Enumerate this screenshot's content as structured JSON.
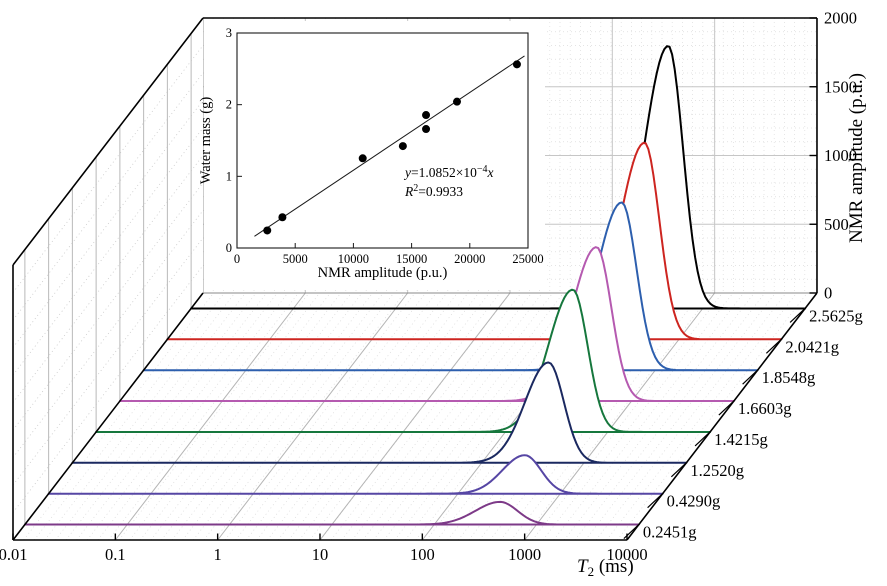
{
  "figure": {
    "background": "#ffffff"
  },
  "chart_data": [
    {
      "type": "line",
      "variant": "3d-waterfall",
      "title": "",
      "xlabel": {
        "base": "T",
        "sub": "2",
        "unit": " (ms)"
      },
      "x_axis": {
        "scale": "log",
        "range_ms": [
          0.01,
          10000
        ],
        "ticks": [
          "0.01",
          "0.1",
          "1",
          "10",
          "100",
          "1000",
          "10000"
        ]
      },
      "z_axis": {
        "label": "NMR amplitude (p.u.)",
        "range": [
          0,
          2000
        ],
        "ticks": [
          0,
          500,
          1000,
          1500,
          2000
        ]
      },
      "depth_axis": {
        "unit": "g",
        "order": "back-to-front"
      },
      "grid": true,
      "series": [
        {
          "label": "2.5625g",
          "color": "#000000",
          "peak_amplitude_pu": 1910,
          "peak_t2_ms": 460,
          "sigma_left_decades": 0.24,
          "sigma_right_decades": 0.145
        },
        {
          "label": "2.0421g",
          "color": "#cd2520",
          "peak_amplitude_pu": 1430,
          "peak_t2_ms": 460,
          "sigma_left_decades": 0.24,
          "sigma_right_decades": 0.145
        },
        {
          "label": "1.8548g",
          "color": "#2d5fae",
          "peak_amplitude_pu": 1220,
          "peak_t2_ms": 470,
          "sigma_left_decades": 0.24,
          "sigma_right_decades": 0.145
        },
        {
          "label": "1.6603g",
          "color": "#b55ab0",
          "peak_amplitude_pu": 1120,
          "peak_t2_ms": 455,
          "sigma_left_decades": 0.24,
          "sigma_right_decades": 0.145
        },
        {
          "label": "1.4215g",
          "color": "#16773d",
          "peak_amplitude_pu": 1035,
          "peak_t2_ms": 455,
          "sigma_left_decades": 0.24,
          "sigma_right_decades": 0.145
        },
        {
          "label": "1.2520g",
          "color": "#1b2960",
          "peak_amplitude_pu": 730,
          "peak_t2_ms": 450,
          "sigma_left_decades": 0.23,
          "sigma_right_decades": 0.15
        },
        {
          "label": "0.4290g",
          "color": "#5646a4",
          "peak_amplitude_pu": 280,
          "peak_t2_ms": 450,
          "sigma_left_decades": 0.22,
          "sigma_right_decades": 0.16
        },
        {
          "label": "0.2451g",
          "color": "#7d3a88",
          "peak_amplitude_pu": 165,
          "peak_t2_ms": 440,
          "sigma_left_decades": 0.24,
          "sigma_right_decades": 0.17
        }
      ]
    },
    {
      "type": "scatter",
      "title": "",
      "xlabel": "NMR amplitude (p.u.)",
      "ylabel": "Water mass (g)",
      "xlim": [
        0,
        25000
      ],
      "ylim": [
        0,
        3
      ],
      "x_ticks": [
        0,
        5000,
        10000,
        15000,
        20000,
        25000
      ],
      "y_ticks": [
        0,
        1,
        2,
        3
      ],
      "marker_color": "#000000",
      "points": [
        {
          "nmr_amplitude_pu": 2600,
          "water_mass_g": 0.245
        },
        {
          "nmr_amplitude_pu": 3900,
          "water_mass_g": 0.429
        },
        {
          "nmr_amplitude_pu": 10800,
          "water_mass_g": 1.252
        },
        {
          "nmr_amplitude_pu": 14250,
          "water_mass_g": 1.422
        },
        {
          "nmr_amplitude_pu": 16240,
          "water_mass_g": 1.66
        },
        {
          "nmr_amplitude_pu": 16240,
          "water_mass_g": 1.855
        },
        {
          "nmr_amplitude_pu": 18900,
          "water_mass_g": 2.042
        },
        {
          "nmr_amplitude_pu": 24050,
          "water_mass_g": 2.563
        }
      ],
      "fit": {
        "slope": 0.00010852,
        "line_x_range": [
          1500,
          24700
        ],
        "equation": {
          "lhs": "y",
          "rhs": "=1.0852×10",
          "exp": "−4",
          "var": "x"
        },
        "r_squared": {
          "base": "R",
          "sup": "2",
          "value": "=0.9933"
        }
      }
    }
  ]
}
